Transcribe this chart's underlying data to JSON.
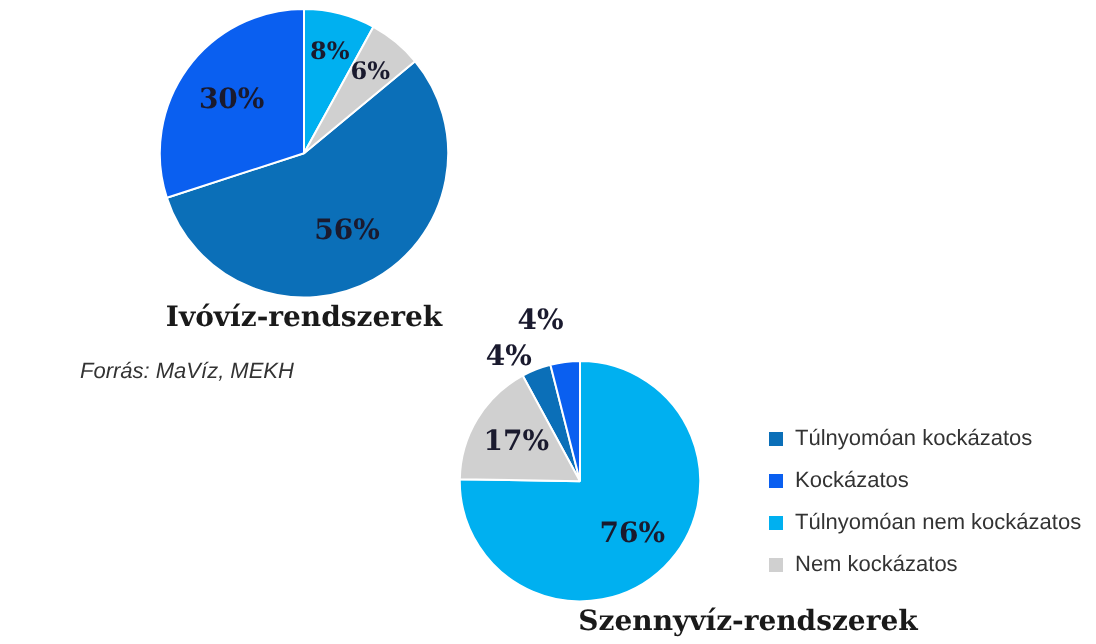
{
  "chart_data": [
    {
      "type": "pie",
      "title": "Ivóvíz-rendszerek",
      "categories": [
        null,
        null,
        null,
        null
      ],
      "values": [
        56,
        30,
        8,
        6
      ],
      "value_labels": [
        "56%",
        "30%",
        "8%",
        "6%"
      ],
      "colors": [
        "#0b6fb8",
        "#0a5ff0",
        "#00b0f0",
        "#d0d0d0"
      ],
      "annotations": [
        "Forrás: MaVíz, MEKH"
      ]
    },
    {
      "type": "pie",
      "title": "Szennyvíz-rendszerek",
      "categories": [
        "Túlnyomóan kockázatos",
        "Kockázatos",
        "Túlnyomóan nem kockázatos",
        "Nem kockázatos"
      ],
      "values": [
        4,
        4,
        76,
        17
      ],
      "value_labels": [
        "4%",
        "4%",
        "76%",
        "17%"
      ],
      "colors": [
        "#0b6fb8",
        "#0a5ff0",
        "#00b0f0",
        "#d0d0d0"
      ],
      "legend": "right"
    }
  ]
}
